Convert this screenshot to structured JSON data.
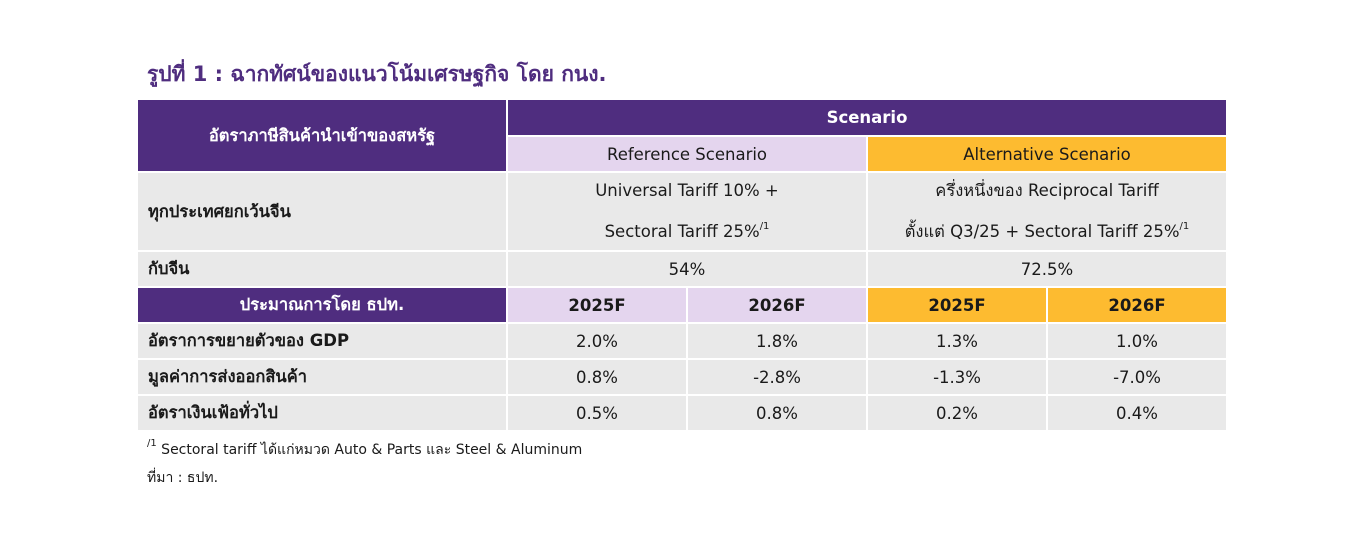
{
  "title": "รูปที่ 1 : ฉากทัศน์ของแนวโน้มเศรษฐกิจ โดย กนง.",
  "table": {
    "tariff_header": "อัตราภาษีสินค้านำเข้าของสหรัฐ",
    "scenario_header": "Scenario",
    "reference_header": "Reference Scenario",
    "alternative_header": "Alternative Scenario",
    "row_all": {
      "label": "ทุกประเทศยกเว้นจีน",
      "reference_line1": "Universal Tariff 10% +",
      "reference_line2": "Sectoral Tariff 25%",
      "reference_sup": "/1",
      "alternative_line1": "ครึ่งหนึ่งของ Reciprocal Tariff",
      "alternative_line2": "ตั้งแต่ Q3/25 + Sectoral Tariff 25%",
      "alternative_sup": "/1"
    },
    "row_china": {
      "label": "กับจีน",
      "reference": "54%",
      "alternative": "72.5%"
    },
    "estimate_header": "ประมาณการโดย ธปท.",
    "years": [
      "2025F",
      "2026F",
      "2025F",
      "2026F"
    ],
    "rows": [
      {
        "label": "อัตราการขยายตัวของ GDP",
        "values": [
          "2.0%",
          "1.8%",
          "1.3%",
          "1.0%"
        ]
      },
      {
        "label": "มูลค่าการส่งออกสินค้า",
        "values": [
          "0.8%",
          "-2.8%",
          "-1.3%",
          "-7.0%"
        ]
      },
      {
        "label": "อัตราเงินเฟ้อทั่วไป",
        "values": [
          "0.5%",
          "0.8%",
          "0.2%",
          "0.4%"
        ]
      }
    ]
  },
  "footnote": {
    "sup": "/1",
    "text": " Sectoral tariff ได้แก่หมวด Auto & Parts และ Steel & Aluminum"
  },
  "source": "ที่มา : ธปท.",
  "colors": {
    "purple": "#4f2d7f",
    "lavender": "#e4d5ee",
    "gold": "#fdbb30",
    "grey": "#e9e9e9"
  }
}
